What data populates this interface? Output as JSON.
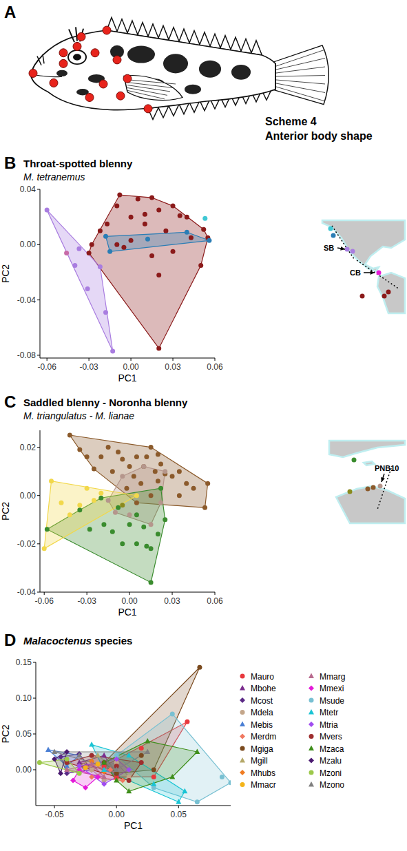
{
  "panel_a": {
    "panel": "A",
    "title": "Scheme 4",
    "subtitle": "Anterior body shape"
  },
  "chart_data": [
    {
      "type": "scatter",
      "panel": "B",
      "title": "Throat-spotted blenny",
      "subtitle": "M. tetranemus",
      "x_label": "PC1",
      "y_label": "PC2",
      "xlim": [
        -0.065,
        0.06
      ],
      "ylim": [
        -0.082,
        0.04
      ],
      "xticks": [
        -0.06,
        -0.03,
        {
          "value": 0,
          "label": "0.00"
        },
        0.03,
        0.06
      ],
      "yticks": [
        -0.08,
        -0.04,
        {
          "value": 0,
          "label": "0.00"
        },
        0.04
      ],
      "marker": "circle",
      "annotations": [
        "SB",
        "CB"
      ],
      "series": [
        {
          "color": "#8b1a1a",
          "x": [
            -0.03,
            -0.028,
            -0.022,
            -0.017,
            -0.01,
            -0.008,
            0.0,
            0.005,
            0.015,
            0.01,
            0.02,
            0.03,
            0.035,
            0.04,
            0.052,
            0.055,
            0.025,
            0.03,
            0.043,
            0.015,
            0.0,
            -0.005,
            0.02,
            0.05,
            0.02,
            -0.01,
            0.01
          ],
          "values": [
            -0.006,
            0.0,
            0.01,
            0.015,
            0.028,
            0.036,
            0.02,
            0.033,
            0.034,
            0.022,
            0.025,
            0.028,
            0.021,
            0.02,
            0.011,
            0.005,
            0.01,
            -0.005,
            0.005,
            -0.008,
            0.003,
            -0.002,
            -0.022,
            -0.015,
            -0.075,
            0.0,
            0.015
          ]
        },
        {
          "color": "#2a7db5",
          "x": [
            -0.018,
            -0.015,
            0.012,
            0.04,
            0.056
          ],
          "values": [
            0.006,
            -0.005,
            0.004,
            0.009,
            0.003
          ]
        },
        {
          "color": "#40c8d4",
          "x": [
            0.053
          ],
          "values": [
            0.019
          ]
        },
        {
          "color": "#a97de0",
          "x": [
            -0.06,
            -0.04,
            -0.031,
            -0.018,
            -0.013,
            -0.022,
            -0.037
          ],
          "values": [
            0.025,
            -0.015,
            -0.032,
            -0.049,
            -0.077,
            -0.016,
            -0.003
          ]
        },
        {
          "color": "#c76ba8",
          "x": [
            -0.046
          ],
          "values": [
            -0.006
          ]
        }
      ]
    },
    {
      "type": "scatter",
      "panel": "C",
      "title": "Saddled blenny - Noronha blenny",
      "subtitle": "M. triangulatus - M. lianae",
      "x_label": "PC1",
      "y_label": "PC2",
      "xlim": [
        -0.063,
        0.06
      ],
      "ylim": [
        -0.04,
        0.027
      ],
      "xticks": [
        -0.06,
        -0.03,
        {
          "value": 0,
          "label": "0.00"
        },
        0.03,
        0.06
      ],
      "yticks": [
        -0.04,
        -0.02,
        {
          "value": 0,
          "label": "0.00"
        },
        0.02
      ],
      "marker": "circle",
      "annotations": [
        "PNB10"
      ],
      "series": [
        {
          "color": "#8b5a2b",
          "x": [
            -0.042,
            -0.035,
            -0.03,
            -0.025,
            -0.02,
            -0.015,
            -0.012,
            -0.008,
            -0.005,
            0.0,
            0.003,
            0.005,
            0.008,
            0.01,
            0.012,
            0.015,
            0.018,
            0.02,
            0.022,
            0.025,
            0.03,
            0.035,
            0.04,
            0.045,
            0.053,
            0.055,
            0.015,
            0.005,
            -0.002,
            0.02,
            0.035
          ],
          "values": [
            0.025,
            0.019,
            0.016,
            0.011,
            0.016,
            0.02,
            0.01,
            0.018,
            0.015,
            0.012,
            0.008,
            0.016,
            0.005,
            0.012,
            0.016,
            0.02,
            0.01,
            0.006,
            0.013,
            0.009,
            0.008,
            0.01,
            0.005,
            0.003,
            -0.005,
            0.005,
            0.0,
            -0.003,
            0.003,
            0.017,
            0.0
          ]
        },
        {
          "color": "#b5968c",
          "x": [
            -0.015,
            -0.01,
            0.0,
            0.015,
            0.022,
            0.025,
            0.01,
            -0.005
          ],
          "values": [
            -0.002,
            -0.007,
            -0.008,
            -0.012,
            -0.003,
            0.01,
            0.012,
            0.008
          ]
        },
        {
          "color": "#3a8c2e",
          "x": [
            -0.058,
            -0.035,
            -0.028,
            -0.02,
            -0.018,
            -0.012,
            -0.005,
            0.0,
            0.005,
            0.01,
            0.012,
            0.015,
            0.02,
            0.025,
            0.022,
            0.015,
            0.005,
            -0.008
          ],
          "values": [
            -0.014,
            -0.006,
            -0.014,
            -0.001,
            -0.012,
            -0.015,
            -0.02,
            -0.012,
            -0.008,
            -0.013,
            -0.021,
            -0.022,
            -0.016,
            -0.01,
            0.003,
            -0.036,
            -0.02,
            -0.005
          ]
        },
        {
          "color": "#f2d84a",
          "x": [
            -0.06,
            -0.055,
            -0.048,
            -0.042,
            -0.035,
            -0.03,
            -0.025,
            -0.02,
            0.005
          ],
          "values": [
            -0.022,
            0.006,
            -0.003,
            -0.008,
            -0.004,
            0.003,
            -0.002,
            0.001,
            0.0
          ]
        },
        {
          "color": "#8a8a1e",
          "x": [
            -0.005
          ],
          "values": [
            -0.004
          ]
        }
      ]
    },
    {
      "type": "scatter",
      "panel": "D",
      "title": "Malacoctenus species",
      "x_label": "PC1",
      "y_label": "PC2",
      "xlim": [
        -0.065,
        0.092
      ],
      "ylim": [
        -0.05,
        0.15
      ],
      "xticks": [
        -0.05,
        {
          "value": 0,
          "label": "0.00"
        },
        0.05
      ],
      "yticks": [
        {
          "value": 0,
          "label": "0.00"
        },
        0.05,
        {
          "value": 0.1,
          "label": "0.10"
        },
        0.15
      ],
      "legend": "right",
      "series": [
        {
          "name": "Mauro",
          "color": "#e8383d",
          "marker": "circle",
          "x": [
            -0.01,
            0.02,
            0.057,
            0.03,
            0.0
          ],
          "values": [
            0.005,
            0.03,
            0.067,
            -0.01,
            -0.01
          ]
        },
        {
          "name": "Mbohe",
          "color": "#7b2d8e",
          "marker": "triangle",
          "x": [
            -0.03,
            -0.01,
            0.0
          ],
          "values": [
            0.01,
            0.02,
            -0.005
          ]
        },
        {
          "name": "Mcost",
          "color": "#5b2a86",
          "marker": "diamond",
          "x": [
            -0.045,
            -0.03,
            -0.02,
            -0.04
          ],
          "values": [
            0.018,
            0.022,
            0.0,
            -0.005
          ]
        },
        {
          "name": "Mdela",
          "color": "#c4a68a",
          "marker": "circle",
          "x": [
            -0.02,
            0.0,
            0.01,
            -0.01
          ],
          "values": [
            0.0,
            0.01,
            -0.01,
            -0.015
          ]
        },
        {
          "name": "Mebis",
          "color": "#4a7fd4",
          "marker": "triangle",
          "x": [
            -0.055,
            -0.03,
            -0.04
          ],
          "values": [
            0.028,
            0.02,
            0.005
          ]
        },
        {
          "name": "Merdm",
          "color": "#f07860",
          "marker": "diamond",
          "x": [
            -0.02,
            -0.005,
            0.005
          ],
          "values": [
            -0.01,
            0.0,
            -0.015
          ]
        },
        {
          "name": "Mgiga",
          "color": "#7a4a1e",
          "marker": "circle",
          "x": [
            -0.01,
            0.02,
            0.067,
            0.03,
            0.0
          ],
          "values": [
            0.01,
            0.02,
            0.143,
            0.0,
            -0.005
          ]
        },
        {
          "name": "Mgill",
          "color": "#b5a96a",
          "marker": "triangle",
          "x": [
            -0.03,
            -0.015,
            0.0
          ],
          "values": [
            0.005,
            0.02,
            0.0
          ]
        },
        {
          "name": "Mhubs",
          "color": "#f07c22",
          "marker": "diamond",
          "x": [
            -0.02,
            -0.01
          ],
          "values": [
            0.012,
            -0.003
          ]
        },
        {
          "name": "Mmacr",
          "color": "#f4b41a",
          "marker": "circle",
          "x": [
            -0.025,
            -0.015
          ],
          "values": [
            0.003,
            0.008
          ]
        },
        {
          "name": "Mmarg",
          "color": "#b86a8e",
          "marker": "triangle",
          "x": [
            -0.04,
            -0.02,
            -0.01
          ],
          "values": [
            0.0,
            0.008,
            -0.01
          ]
        },
        {
          "name": "Mmexi",
          "color": "#e41ad8",
          "marker": "diamond",
          "x": [
            -0.035,
            -0.025,
            -0.015,
            -0.03
          ],
          "values": [
            -0.015,
            -0.025,
            -0.01,
            0.0
          ]
        },
        {
          "name": "Msude",
          "color": "#78c0d2",
          "marker": "circle",
          "x": [
            0.0,
            0.045,
            0.092,
            0.085,
            0.065,
            0.03
          ],
          "values": [
            0.02,
            0.078,
            -0.018,
            -0.01,
            -0.045,
            -0.025
          ]
        },
        {
          "name": "Mtetr",
          "color": "#1ac4d4",
          "marker": "triangle",
          "x": [
            -0.02,
            0.01,
            0.05,
            0.055,
            0.03,
            -0.01
          ],
          "values": [
            0.035,
            0.02,
            -0.045,
            -0.03,
            -0.02,
            0.0
          ]
        },
        {
          "name": "Mtria",
          "color": "#a04cf0",
          "marker": "diamond",
          "x": [
            -0.03,
            -0.01,
            0.01,
            0.0
          ],
          "values": [
            0.005,
            -0.02,
            0.0,
            0.015
          ]
        },
        {
          "name": "Mvers",
          "color": "#9e2e2e",
          "marker": "circle",
          "x": [
            -0.04,
            -0.02,
            0.0,
            0.02,
            0.01
          ],
          "values": [
            0.01,
            0.02,
            0.005,
            0.01,
            -0.015
          ]
        },
        {
          "name": "Mzaca",
          "color": "#3e8e1a",
          "marker": "triangle",
          "x": [
            -0.01,
            0.025,
            0.065,
            0.045,
            0.01,
            0.0
          ],
          "values": [
            0.01,
            0.04,
            0.025,
            -0.01,
            -0.03,
            -0.015
          ]
        },
        {
          "name": "Mzalu",
          "color": "#4a1a70",
          "marker": "diamond",
          "x": [
            -0.05,
            -0.04,
            -0.045
          ],
          "values": [
            0.015,
            0.025,
            -0.005
          ]
        },
        {
          "name": "Mzoni",
          "color": "#9cc84a",
          "marker": "circle",
          "x": [
            -0.062,
            -0.04,
            -0.03
          ],
          "values": [
            0.01,
            0.015,
            -0.005
          ]
        },
        {
          "name": "Mzono",
          "color": "#808080",
          "marker": "triangle",
          "x": [
            -0.05,
            -0.03,
            0.025,
            0.0
          ],
          "values": [
            0.025,
            0.02,
            0.025,
            0.0
          ]
        }
      ]
    }
  ]
}
